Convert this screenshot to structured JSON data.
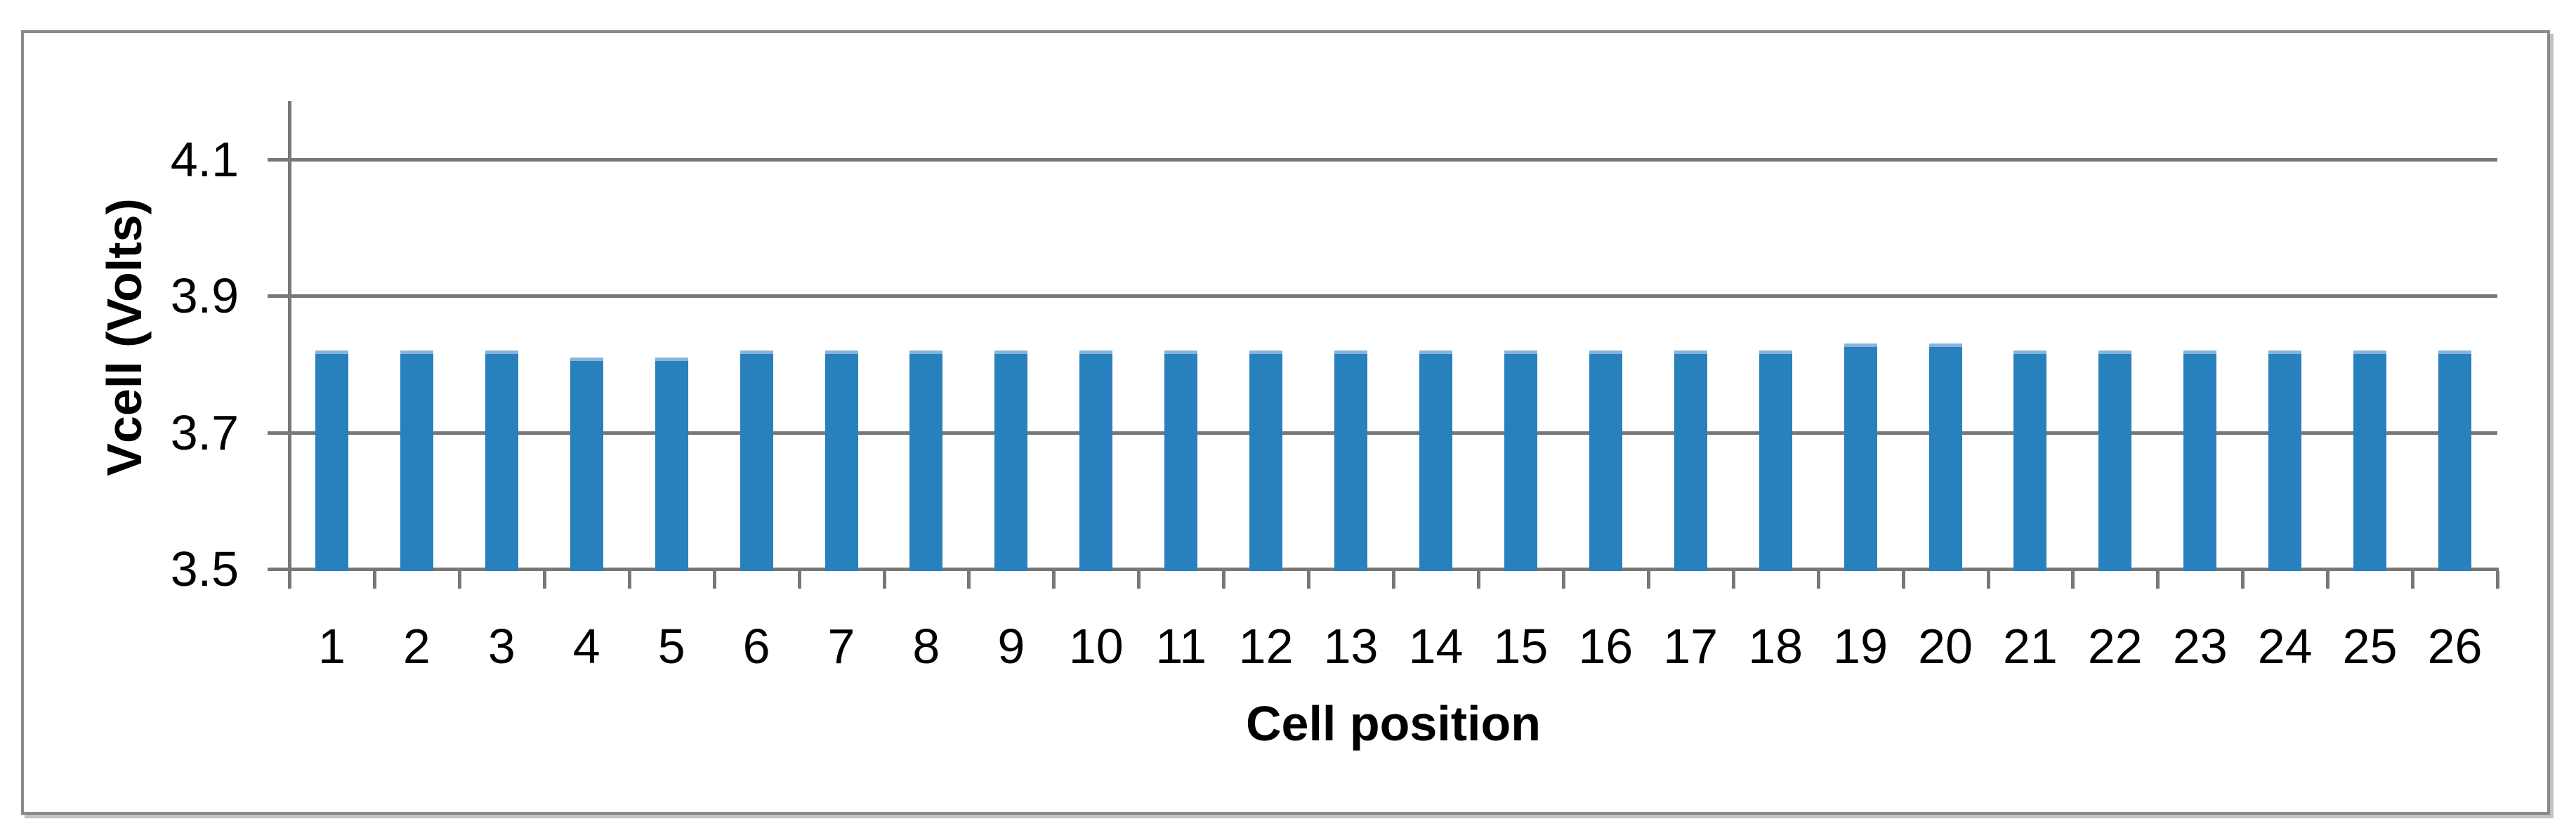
{
  "colors": {
    "background": "#FFFFFF",
    "frame_border": "#8A8A8A",
    "frame_shadow": "#C2C2C2",
    "gridline": "#787878",
    "axis_line": "#787878",
    "bar_fill": "#2880BD",
    "bar_top_edge": "#85B4DC",
    "text": "#000000"
  },
  "chart_data": {
    "type": "bar",
    "title": "",
    "xlabel": "Cell position",
    "ylabel": "Vcell (Volts)",
    "categories": [
      "1",
      "2",
      "3",
      "4",
      "5",
      "6",
      "7",
      "8",
      "9",
      "10",
      "11",
      "12",
      "13",
      "14",
      "15",
      "16",
      "17",
      "18",
      "19",
      "20",
      "21",
      "22",
      "23",
      "24",
      "25",
      "26"
    ],
    "values": [
      3.82,
      3.82,
      3.82,
      3.81,
      3.81,
      3.82,
      3.82,
      3.82,
      3.82,
      3.82,
      3.82,
      3.82,
      3.82,
      3.82,
      3.82,
      3.82,
      3.82,
      3.82,
      3.83,
      3.83,
      3.82,
      3.82,
      3.82,
      3.82,
      3.82,
      3.82
    ],
    "yticks": [
      4.1,
      3.9,
      3.7,
      3.5
    ],
    "ytick_labels": [
      "4.1",
      "3.9",
      "3.7",
      "3.5"
    ],
    "ylim": [
      3.5,
      4.19
    ],
    "grid": "horizontal-major",
    "legend_position": "none"
  }
}
